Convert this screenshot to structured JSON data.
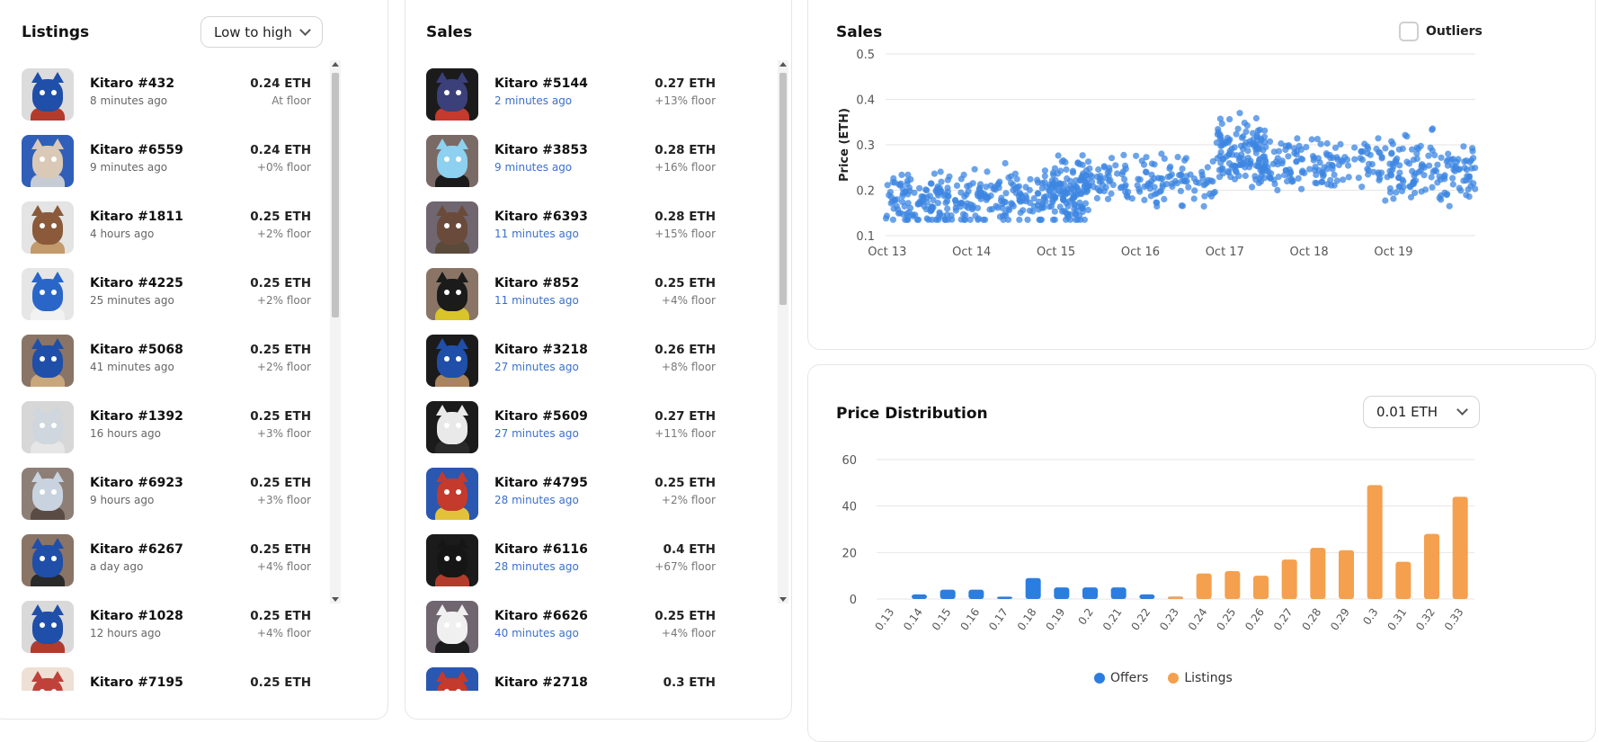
{
  "listings": {
    "title": "Listings",
    "sort_value": "Low to high",
    "items": [
      {
        "name": "Kitaro #432",
        "time": "8 minutes ago",
        "price": "0.24 ETH",
        "floor": "At floor",
        "bg": "#dcdcdc",
        "head": "#1f4fa8",
        "body": "#b33b2c"
      },
      {
        "name": "Kitaro #6559",
        "time": "9 minutes ago",
        "price": "0.24 ETH",
        "floor": "+0% floor",
        "bg": "#2f5fb8",
        "head": "#d9c9b6",
        "body": "#c7cbd3"
      },
      {
        "name": "Kitaro #1811",
        "time": "4 hours ago",
        "price": "0.25 ETH",
        "floor": "+2% floor",
        "bg": "#e4e4e4",
        "head": "#8a5a3b",
        "body": "#c29a6b"
      },
      {
        "name": "Kitaro #4225",
        "time": "25 minutes ago",
        "price": "0.25 ETH",
        "floor": "+2% floor",
        "bg": "#e6e6e6",
        "head": "#2a66c8",
        "body": "#f2f2f2"
      },
      {
        "name": "Kitaro #5068",
        "time": "41 minutes ago",
        "price": "0.25 ETH",
        "floor": "+2% floor",
        "bg": "#8a7466",
        "head": "#1f4fa8",
        "body": "#c9a77c"
      },
      {
        "name": "Kitaro #1392",
        "time": "16 hours ago",
        "price": "0.25 ETH",
        "floor": "+3% floor",
        "bg": "#d7d7d7",
        "head": "#cfd6dd",
        "body": "#e6e6e6"
      },
      {
        "name": "Kitaro #6923",
        "time": "9 hours ago",
        "price": "0.25 ETH",
        "floor": "+3% floor",
        "bg": "#8d7e76",
        "head": "#c8d3df",
        "body": "#5a4c44"
      },
      {
        "name": "Kitaro #6267",
        "time": "a day ago",
        "price": "0.25 ETH",
        "floor": "+4% floor",
        "bg": "#8a7466",
        "head": "#1f4fa8",
        "body": "#2a2a2a"
      },
      {
        "name": "Kitaro #1028",
        "time": "12 hours ago",
        "price": "0.25 ETH",
        "floor": "+4% floor",
        "bg": "#d9d9d9",
        "head": "#1f4fa8",
        "body": "#b33b2c"
      },
      {
        "name": "Kitaro #7195",
        "time": "",
        "price": "0.25 ETH",
        "floor": "",
        "bg": "#eee0d4",
        "head": "#c0413a",
        "body": "#c0413a"
      }
    ]
  },
  "sales": {
    "title": "Sales",
    "items": [
      {
        "name": "Kitaro #5144",
        "time": "2 minutes ago",
        "price": "0.27 ETH",
        "floor": "+13% floor",
        "bg": "#1b1b1b",
        "head": "#3b3f7a",
        "body": "#c43a2c"
      },
      {
        "name": "Kitaro #3853",
        "time": "9 minutes ago",
        "price": "0.28 ETH",
        "floor": "+16% floor",
        "bg": "#7a6a66",
        "head": "#8ed0ef",
        "body": "#1b1b1b"
      },
      {
        "name": "Kitaro #6393",
        "time": "11 minutes ago",
        "price": "0.28 ETH",
        "floor": "+15% floor",
        "bg": "#6f6670",
        "head": "#6a4a3a",
        "body": "#5a4a3a"
      },
      {
        "name": "Kitaro #852",
        "time": "11 minutes ago",
        "price": "0.25 ETH",
        "floor": "+4% floor",
        "bg": "#8a7466",
        "head": "#1b1b1b",
        "body": "#d9c42a"
      },
      {
        "name": "Kitaro #3218",
        "time": "27 minutes ago",
        "price": "0.26 ETH",
        "floor": "+8% floor",
        "bg": "#1b1b1b",
        "head": "#1f4fa8",
        "body": "#a9845c"
      },
      {
        "name": "Kitaro #5609",
        "time": "27 minutes ago",
        "price": "0.27 ETH",
        "floor": "+11% floor",
        "bg": "#1b1b1b",
        "head": "#e9e9e9",
        "body": "#2a2a2a"
      },
      {
        "name": "Kitaro #4795",
        "time": "28 minutes ago",
        "price": "0.25 ETH",
        "floor": "+2% floor",
        "bg": "#2a57b0",
        "head": "#c43a2c",
        "body": "#e2c23a"
      },
      {
        "name": "Kitaro #6116",
        "time": "28 minutes ago",
        "price": "0.4 ETH",
        "floor": "+67% floor",
        "bg": "#1b1b1b",
        "head": "#161616",
        "body": "#b33b2c"
      },
      {
        "name": "Kitaro #6626",
        "time": "40 minutes ago",
        "price": "0.25 ETH",
        "floor": "+4% floor",
        "bg": "#6f6670",
        "head": "#f0f0f0",
        "body": "#1b1b1b"
      },
      {
        "name": "Kitaro #2718",
        "time": "",
        "price": "0.3 ETH",
        "floor": "",
        "bg": "#2a57b0",
        "head": "#c43a2c",
        "body": "#c43a2c"
      }
    ]
  },
  "sales_chart": {
    "title": "Sales",
    "outliers_label": "Outliers",
    "outliers_checked": false
  },
  "distribution": {
    "title": "Price Distribution",
    "bucket_value": "0.01 ETH",
    "legend_offers": "Offers",
    "legend_listings": "Listings"
  },
  "colors": {
    "offers": "#2b7de0",
    "listings": "#f4a04e",
    "scatter": "#3c86e2",
    "link_blue": "#3a6fcf"
  },
  "chart_data": [
    {
      "type": "scatter",
      "title": "Sales",
      "xlabel": "",
      "ylabel": "Price (ETH)",
      "ylim": [
        0.1,
        0.5
      ],
      "yticks": [
        "0.1",
        "0.2",
        "0.3",
        "0.4",
        "0.5"
      ],
      "xticks": [
        "Oct 13",
        "Oct 14",
        "Oct 15",
        "Oct 16",
        "Oct 17",
        "Oct 18",
        "Oct 19"
      ],
      "xlim": [
        12.98,
        19.97
      ],
      "grid": true,
      "segments": [
        {
          "x": [
            12.98,
            13.9
          ],
          "median": 0.175,
          "spread": 0.08
        },
        {
          "x": [
            13.9,
            14.9
          ],
          "median": 0.18,
          "spread": 0.09
        },
        {
          "x": [
            14.9,
            15.4
          ],
          "median": 0.2,
          "spread": 0.09
        },
        {
          "x": [
            15.4,
            16.9
          ],
          "median": 0.22,
          "spread": 0.07
        },
        {
          "x": [
            16.9,
            17.5
          ],
          "median": 0.275,
          "spread": 0.1
        },
        {
          "x": [
            17.5,
            18.9
          ],
          "median": 0.255,
          "spread": 0.08
        },
        {
          "x": [
            18.9,
            19.97
          ],
          "median": 0.24,
          "spread": 0.1
        }
      ],
      "points_per_segment": 135
    },
    {
      "type": "bar",
      "title": "Price Distribution",
      "categories": [
        "0.13",
        "0.14",
        "0.15",
        "0.16",
        "0.17",
        "0.18",
        "0.19",
        "0.2",
        "0.21",
        "0.22",
        "0.23",
        "0.24",
        "0.25",
        "0.26",
        "0.27",
        "0.28",
        "0.29",
        "0.3",
        "0.31",
        "0.32",
        "0.33"
      ],
      "series": [
        {
          "name": "Offers",
          "values": [
            0,
            2,
            4,
            4,
            1,
            9,
            5,
            5,
            5,
            2,
            1,
            0,
            0,
            0,
            0,
            0,
            0,
            0,
            0,
            0,
            0
          ]
        },
        {
          "name": "Listings",
          "values": [
            0,
            0,
            0,
            0,
            0,
            0,
            0,
            0,
            0,
            0,
            1,
            11,
            12,
            10,
            17,
            22,
            21,
            49,
            16,
            28,
            44
          ]
        }
      ],
      "ylim": [
        0,
        60
      ],
      "yticks": [
        "0",
        "20",
        "40",
        "60"
      ],
      "legend": "bottom-center",
      "grid": true
    }
  ]
}
